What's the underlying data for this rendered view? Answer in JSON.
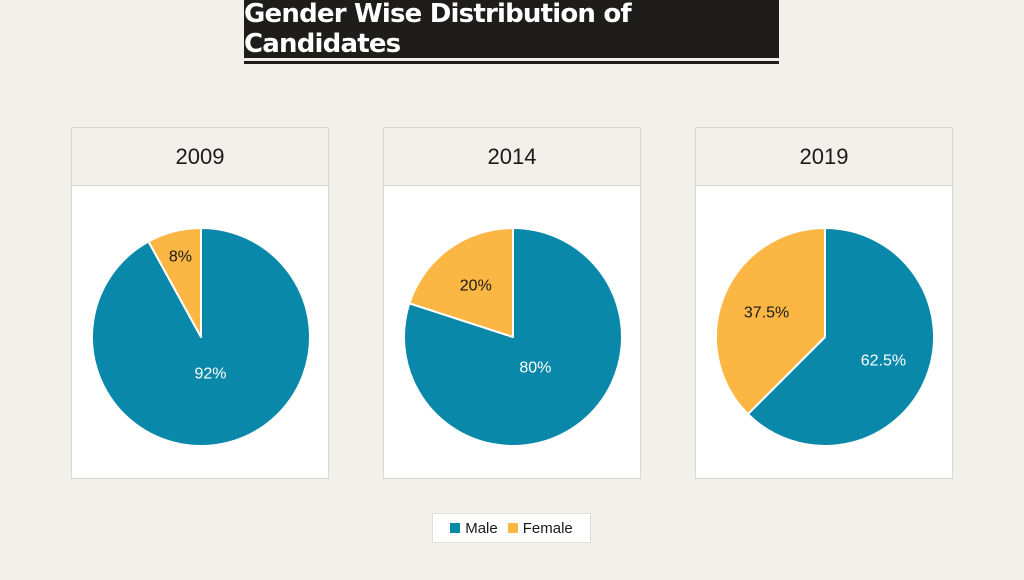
{
  "header": {
    "title": "Gender Wise Distribution of Candidates"
  },
  "colors": {
    "male": "#0a88aa",
    "female": "#fbb644",
    "background": "#f1f0ea"
  },
  "legend": {
    "items": [
      {
        "label": "Male",
        "color": "#0a88aa"
      },
      {
        "label": "Female",
        "color": "#fbb644"
      }
    ]
  },
  "chart_data": [
    {
      "type": "pie",
      "title": "2009",
      "categories": [
        "Male",
        "Female"
      ],
      "values": [
        92,
        8
      ],
      "labels": [
        "92%",
        "8%"
      ]
    },
    {
      "type": "pie",
      "title": "2014",
      "categories": [
        "Male",
        "Female"
      ],
      "values": [
        80,
        20
      ],
      "labels": [
        "80%",
        "20%"
      ]
    },
    {
      "type": "pie",
      "title": "2019",
      "categories": [
        "Male",
        "Female"
      ],
      "values": [
        62.5,
        37.5
      ],
      "labels": [
        "62.5%",
        "37.5%"
      ]
    }
  ]
}
